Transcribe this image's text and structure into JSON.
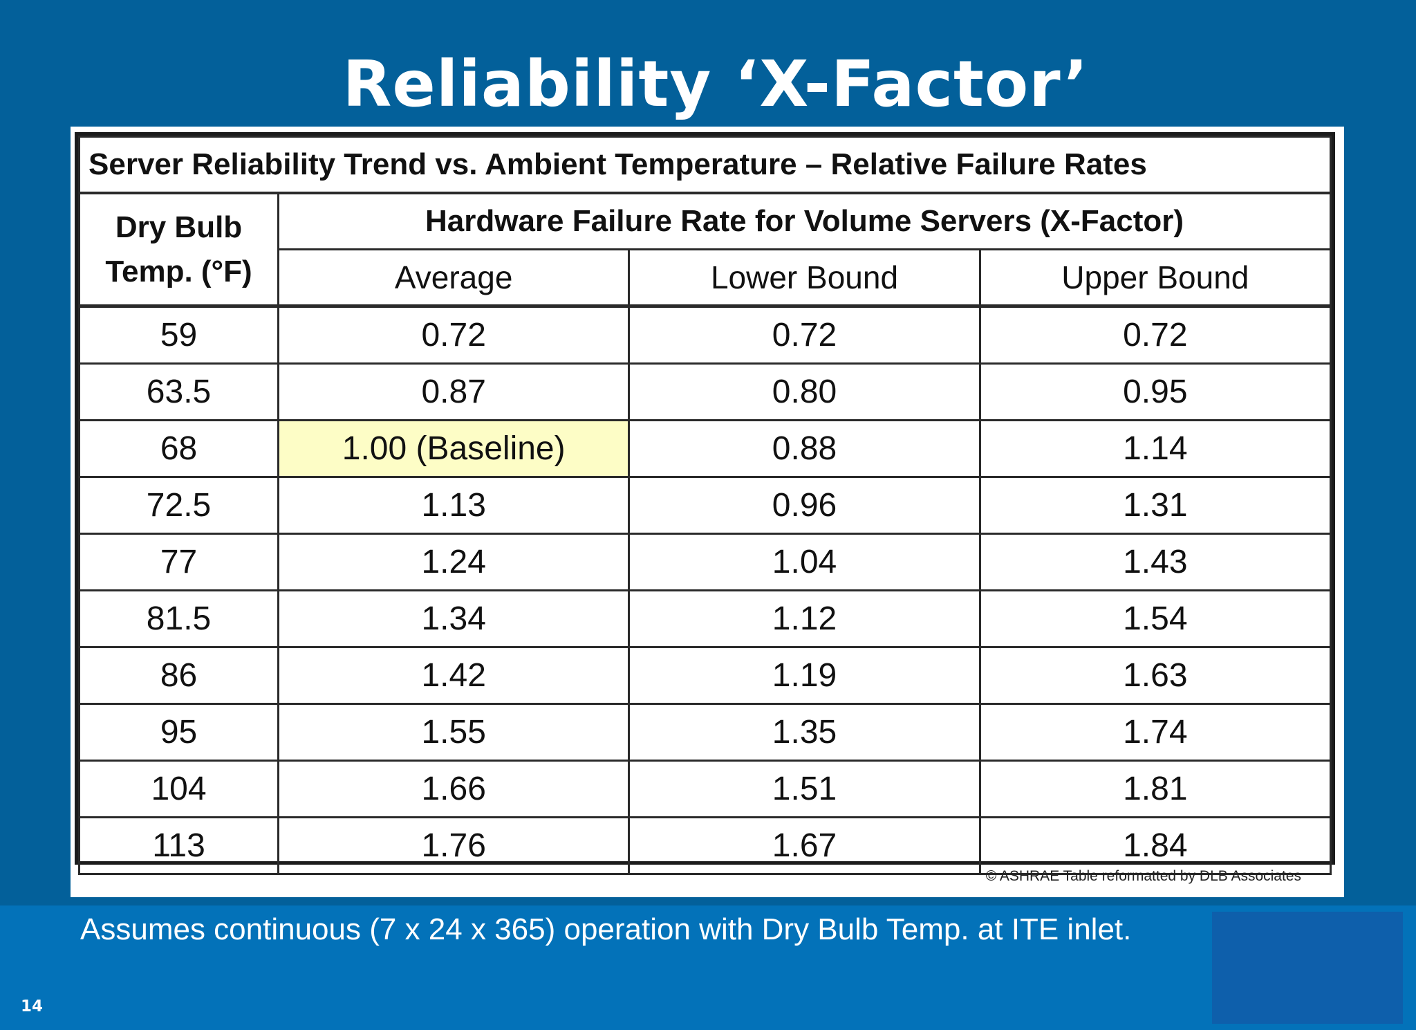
{
  "slide": {
    "title": "Reliability ‘X-Factor’",
    "footnote": "Assumes continuous (7 x 24 x 365) operation with Dry Bulb Temp. at ITE inlet.",
    "page_number": "14",
    "credit": "© ASHRAE Table reformatted by DLB Associates"
  },
  "table": {
    "caption": "Server Reliability Trend vs. Ambient Temperature – Relative Failure Rates",
    "temp_header_line1": "Dry Bulb",
    "temp_header_line2": "Temp. (°F)",
    "group_header": "Hardware Failure Rate for Volume Servers (X-Factor)",
    "columns": [
      "Average",
      "Lower Bound",
      "Upper Bound"
    ],
    "rows": [
      {
        "temp": "59",
        "average": "0.72",
        "lower": "0.72",
        "upper": "0.72"
      },
      {
        "temp": "63.5",
        "average": "0.87",
        "lower": "0.80",
        "upper": "0.95"
      },
      {
        "temp": "68",
        "average": "1.00 (Baseline)",
        "lower": "0.88",
        "upper": "1.14"
      },
      {
        "temp": "72.5",
        "average": "1.13",
        "lower": "0.96",
        "upper": "1.31"
      },
      {
        "temp": "77",
        "average": "1.24",
        "lower": "1.04",
        "upper": "1.43"
      },
      {
        "temp": "81.5",
        "average": "1.34",
        "lower": "1.12",
        "upper": "1.54"
      },
      {
        "temp": "86",
        "average": "1.42",
        "lower": "1.19",
        "upper": "1.63"
      },
      {
        "temp": "95",
        "average": "1.55",
        "lower": "1.35",
        "upper": "1.74"
      },
      {
        "temp": "104",
        "average": "1.66",
        "lower": "1.51",
        "upper": "1.81"
      },
      {
        "temp": "113",
        "average": "1.76",
        "lower": "1.67",
        "upper": "1.84"
      }
    ]
  },
  "colors": {
    "background": "#03609a",
    "bottom_band": "#0372b9",
    "baseline_highlight": "#fdfdc6"
  }
}
